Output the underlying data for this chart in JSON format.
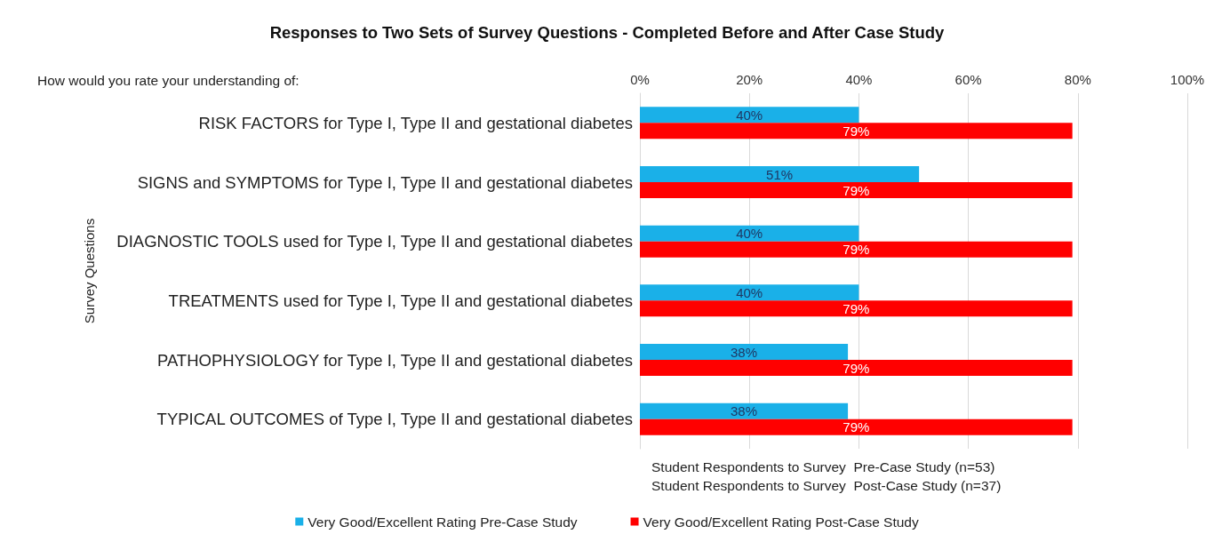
{
  "chart_data": {
    "type": "bar",
    "orientation": "horizontal",
    "title": "Responses to Two Sets of Survey Questions - Completed Before and After Case Study",
    "ylabel": "Survey Questions",
    "categories": [
      "RISK FACTORS for Type I, Type II and gestational diabetes",
      "SIGNS and SYMPTOMS for Type I, Type II and gestational diabetes",
      "DIAGNOSTIC TOOLS used for Type I, Type II and gestational diabetes",
      "TREATMENTS used for Type I, Type II and gestational diabetes",
      "PATHOPHYSIOLOGY for Type I, Type II and gestational diabetes",
      "TYPICAL OUTCOMES of Type I, Type II and gestational diabetes"
    ],
    "series": [
      {
        "name": "Very Good/Excellent Rating Pre-Case Study",
        "color": "#1ab0e8",
        "values": [
          40,
          51,
          40,
          40,
          38,
          38
        ],
        "value_labels": [
          "40%",
          "51%",
          "40%",
          "40%",
          "38%",
          "38%"
        ]
      },
      {
        "name": "Very Good/Excellent Rating Post-Case Study",
        "color": "#ff0000",
        "values": [
          79,
          79,
          79,
          79,
          79,
          79
        ],
        "value_labels": [
          "79%",
          "79%",
          "79%",
          "79%",
          "79%",
          "79%"
        ]
      }
    ],
    "xlim": [
      0,
      100
    ],
    "xticks": [
      {
        "value": 0,
        "label": "0%"
      },
      {
        "value": 20,
        "label": "20%"
      },
      {
        "value": 40,
        "label": "40%"
      },
      {
        "value": 60,
        "label": "60%"
      },
      {
        "value": 80,
        "label": "80%"
      },
      {
        "value": 100,
        "label": "100%"
      }
    ],
    "grid": "x",
    "legend": "bottom",
    "annotations": [
      "How would you rate your understanding of:",
      "Student Respondents to Survey  Pre-Case Study (n=53)",
      "Student Respondents to Survey  Post-Case Study (n=37)"
    ]
  }
}
